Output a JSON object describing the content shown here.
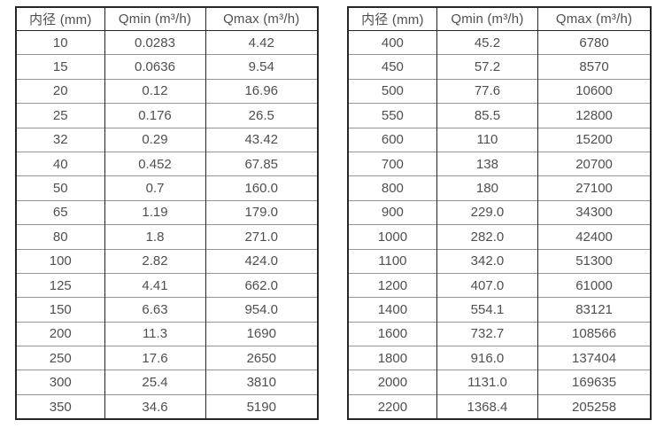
{
  "colors": {
    "text": "#4f4f4f",
    "border_dark": "#262626",
    "border_light": "#949494",
    "background": "#ffffff"
  },
  "tables": [
    {
      "name": "flow-rate-table-small-diameters",
      "headers": [
        "内径 (mm)",
        "Qmin (m³/h)",
        "Qmax (m³/h)"
      ],
      "rows": [
        [
          "10",
          "0.0283",
          "4.42"
        ],
        [
          "15",
          "0.0636",
          "9.54"
        ],
        [
          "20",
          "0.12",
          "16.96"
        ],
        [
          "25",
          "0.176",
          "26.5"
        ],
        [
          "32",
          "0.29",
          "43.42"
        ],
        [
          "40",
          "0.452",
          "67.85"
        ],
        [
          "50",
          "0.7",
          "160.0"
        ],
        [
          "65",
          "1.19",
          "179.0"
        ],
        [
          "80",
          "1.8",
          "271.0"
        ],
        [
          "100",
          "2.82",
          "424.0"
        ],
        [
          "125",
          "4.41",
          "662.0"
        ],
        [
          "150",
          "6.63",
          "954.0"
        ],
        [
          "200",
          "11.3",
          "1690"
        ],
        [
          "250",
          "17.6",
          "2650"
        ],
        [
          "300",
          "25.4",
          "3810"
        ],
        [
          "350",
          "34.6",
          "5190"
        ]
      ]
    },
    {
      "name": "flow-rate-table-large-diameters",
      "headers": [
        "内径 (mm)",
        "Qmin (m³/h)",
        "Qmax (m³/h)"
      ],
      "rows": [
        [
          "400",
          "45.2",
          "6780"
        ],
        [
          "450",
          "57.2",
          "8570"
        ],
        [
          "500",
          "77.6",
          "10600"
        ],
        [
          "550",
          "85.5",
          "12800"
        ],
        [
          "600",
          "110",
          "15200"
        ],
        [
          "700",
          "138",
          "20700"
        ],
        [
          "800",
          "180",
          "27100"
        ],
        [
          "900",
          "229.0",
          "34300"
        ],
        [
          "1000",
          "282.0",
          "42400"
        ],
        [
          "1100",
          "342.0",
          "51300"
        ],
        [
          "1200",
          "407.0",
          "61000"
        ],
        [
          "1400",
          "554.1",
          "83121"
        ],
        [
          "1600",
          "732.7",
          "108566"
        ],
        [
          "1800",
          "916.0",
          "137404"
        ],
        [
          "2000",
          "1131.0",
          "169635"
        ],
        [
          "2200",
          "1368.4",
          "205258"
        ]
      ]
    }
  ],
  "chart_data": [
    {
      "type": "table",
      "title": "",
      "columns": [
        "内径 (mm)",
        "Qmin (m³/h)",
        "Qmax (m³/h)"
      ],
      "rows": [
        [
          10,
          0.0283,
          4.42
        ],
        [
          15,
          0.0636,
          9.54
        ],
        [
          20,
          0.12,
          16.96
        ],
        [
          25,
          0.176,
          26.5
        ],
        [
          32,
          0.29,
          43.42
        ],
        [
          40,
          0.452,
          67.85
        ],
        [
          50,
          0.7,
          160.0
        ],
        [
          65,
          1.19,
          179.0
        ],
        [
          80,
          1.8,
          271.0
        ],
        [
          100,
          2.82,
          424.0
        ],
        [
          125,
          4.41,
          662.0
        ],
        [
          150,
          6.63,
          954.0
        ],
        [
          200,
          11.3,
          1690
        ],
        [
          250,
          17.6,
          2650
        ],
        [
          300,
          25.4,
          3810
        ],
        [
          350,
          34.6,
          5190
        ]
      ]
    },
    {
      "type": "table",
      "title": "",
      "columns": [
        "内径 (mm)",
        "Qmin (m³/h)",
        "Qmax (m³/h)"
      ],
      "rows": [
        [
          400,
          45.2,
          6780
        ],
        [
          450,
          57.2,
          8570
        ],
        [
          500,
          77.6,
          10600
        ],
        [
          550,
          85.5,
          12800
        ],
        [
          600,
          110,
          15200
        ],
        [
          700,
          138,
          20700
        ],
        [
          800,
          180,
          27100
        ],
        [
          900,
          229.0,
          34300
        ],
        [
          1000,
          282.0,
          42400
        ],
        [
          1100,
          342.0,
          51300
        ],
        [
          1200,
          407.0,
          61000
        ],
        [
          1400,
          554.1,
          83121
        ],
        [
          1600,
          732.7,
          108566
        ],
        [
          1800,
          916.0,
          137404
        ],
        [
          2000,
          1131.0,
          169635
        ],
        [
          2200,
          1368.4,
          205258
        ]
      ]
    }
  ]
}
